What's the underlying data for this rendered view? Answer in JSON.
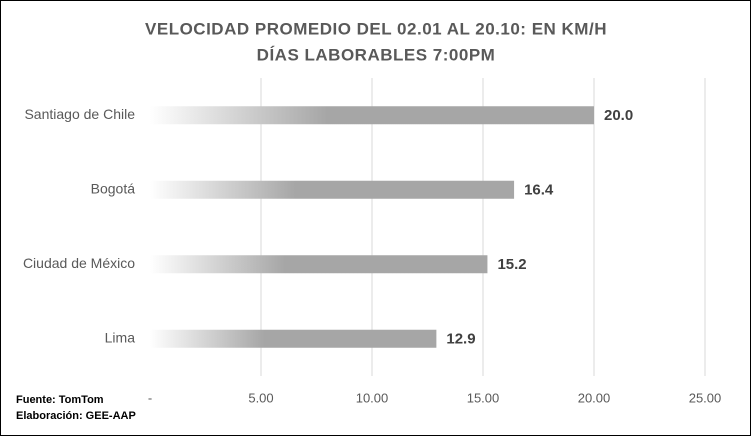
{
  "chart_data": {
    "type": "hbar",
    "title": "VELOCIDAD PROMEDIO DEL 02.01 AL 20.10: EN KM/H",
    "subtitle": "DÍAS LABORABLES 7:00PM",
    "categories": [
      "Santiago de Chile",
      "Bogotá",
      "Ciudad de México",
      "Lima"
    ],
    "values": [
      20.0,
      16.4,
      15.2,
      12.9
    ],
    "value_labels": [
      "20.0",
      "16.4",
      "15.2",
      "12.9"
    ],
    "color": "#a6a6a6",
    "xlim": [
      0,
      25
    ],
    "xticks": [
      {
        "value": 0,
        "label": "-"
      },
      {
        "value": 5,
        "label": "5.00"
      },
      {
        "value": 10,
        "label": "10.00"
      },
      {
        "value": 15,
        "label": "15.00"
      },
      {
        "value": 20,
        "label": "20.00"
      },
      {
        "value": 25,
        "label": "25.00"
      }
    ],
    "grid": true,
    "notes": [
      "Fuente: TomTom",
      "Elaboración: GEE-AAP"
    ]
  }
}
